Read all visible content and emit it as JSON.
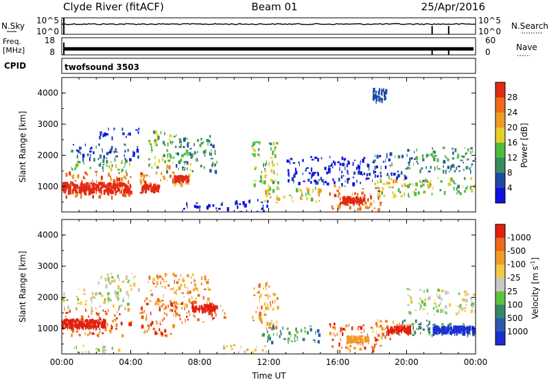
{
  "header": {
    "station": "Clyde River (fitACF)",
    "beam": "Beam 01",
    "date": "25/Apr/2016"
  },
  "strips": {
    "nsky_label": "N.Sky",
    "nsearch_label": "N.Search",
    "nsky_ticks": [
      "10^5",
      "10^0"
    ],
    "nsearch_ticks": [
      "10^5",
      "10^0"
    ],
    "freq_label": "Freq.",
    "freq_unit": "[MHz]",
    "freq_ticks": [
      "18",
      "8"
    ],
    "nave_label": "Nave",
    "nave_ticks": [
      "60",
      "0"
    ],
    "cpid_label": "CPID",
    "cpid_value": "twofsound 3503",
    "nsky_level": 0.62,
    "freq_level": 0.35
  },
  "chart_data": [
    {
      "type": "heatmap",
      "name": "power",
      "ylabel": "Slant Range [km]",
      "ylim": [
        180,
        4500
      ],
      "y_ticks": [
        "1000",
        "2000",
        "3000",
        "4000"
      ],
      "x_ticks": [
        "00:00",
        "04:00",
        "08:00",
        "12:00",
        "16:00",
        "20:00",
        "00:00"
      ],
      "colorbar_label": "Power [dB]",
      "colorbar_ticks": [
        "4",
        "8",
        "12",
        "16",
        "20",
        "24",
        "28"
      ],
      "colorbar_colors": [
        "#1010e0",
        "#2048a8",
        "#3a8a62",
        "#4cbc3c",
        "#e6cf2a",
        "#f09a26",
        "#f06a1a",
        "#e32a12"
      ],
      "regions": [
        {
          "t0": 0.0,
          "t1": 4.0,
          "r0": 700,
          "r1": 1500,
          "c": 6
        },
        {
          "t0": 0.5,
          "t1": 4.0,
          "r0": 1500,
          "r1": 1900,
          "c": 3
        },
        {
          "t0": 0.5,
          "t1": 4.5,
          "r0": 1900,
          "r1": 2400,
          "c": 1
        },
        {
          "t0": 2.0,
          "t1": 4.5,
          "r0": 2600,
          "r1": 2900,
          "c": 0
        },
        {
          "t0": 4.5,
          "t1": 6.0,
          "r0": 800,
          "r1": 1500,
          "c": 6
        },
        {
          "t0": 5.0,
          "t1": 6.5,
          "r0": 1500,
          "r1": 2800,
          "c": 3
        },
        {
          "t0": 6.0,
          "t1": 7.5,
          "r0": 1100,
          "r1": 1800,
          "c": 5
        },
        {
          "t0": 6.5,
          "t1": 9.0,
          "r0": 1500,
          "r1": 2700,
          "c": 2
        },
        {
          "t0": 7.0,
          "t1": 10.0,
          "r0": 300,
          "r1": 500,
          "c": 0
        },
        {
          "t0": 10.0,
          "t1": 12.0,
          "r0": 200,
          "r1": 600,
          "c": 0
        },
        {
          "t0": 11.0,
          "t1": 12.5,
          "r0": 1000,
          "r1": 2500,
          "c": 3
        },
        {
          "t0": 11.5,
          "t1": 15.0,
          "r0": 500,
          "r1": 1000,
          "c": 4
        },
        {
          "t0": 15.5,
          "t1": 18.5,
          "r0": 300,
          "r1": 1100,
          "c": 6
        },
        {
          "t0": 18.0,
          "t1": 21.5,
          "r0": 700,
          "r1": 1300,
          "c": 4
        },
        {
          "t0": 20.5,
          "t1": 24.0,
          "r0": 800,
          "r1": 1300,
          "c": 3
        },
        {
          "t0": 20.0,
          "t1": 24.0,
          "r0": 1500,
          "r1": 2300,
          "c": 2
        },
        {
          "t0": 18.0,
          "t1": 20.0,
          "r0": 1300,
          "r1": 2100,
          "c": 1
        },
        {
          "t0": 13.0,
          "t1": 18.0,
          "r0": 1100,
          "r1": 2000,
          "c": 0
        }
      ],
      "streaks": [
        {
          "t0": 0.0,
          "t1": 4.0,
          "r": 1000,
          "w": 300,
          "c": 7
        },
        {
          "t0": 4.6,
          "t1": 5.6,
          "r": 1000,
          "w": 200,
          "c": 7
        },
        {
          "t0": 6.4,
          "t1": 7.3,
          "r": 1300,
          "w": 150,
          "c": 7
        },
        {
          "t0": 16.2,
          "t1": 17.5,
          "r": 600,
          "w": 200,
          "c": 7
        },
        {
          "t0": 18.0,
          "t1": 18.8,
          "r": 4000,
          "w": 400,
          "c": 1
        }
      ]
    },
    {
      "type": "heatmap",
      "name": "velocity",
      "ylabel": "Slant Range [km]",
      "ylim": [
        180,
        4500
      ],
      "y_ticks": [
        "1000",
        "2000",
        "3000",
        "4000"
      ],
      "x_ticks": [
        "00:00",
        "04:00",
        "08:00",
        "12:00",
        "16:00",
        "20:00",
        "00:00"
      ],
      "xlabel": "Time UT",
      "colorbar_label": "Velocity [m s",
      "colorbar_label_sup": "-1",
      "colorbar_label_end": "]",
      "colorbar_ticks": [
        "1000",
        "500",
        "100",
        "25",
        "-25",
        "-100",
        "-500",
        "-1000"
      ],
      "colorbar_colors": [
        "#1b2fd2",
        "#2f58ae",
        "#36886a",
        "#5cc43c",
        "#c8c8c8",
        "#f2c84a",
        "#f29b28",
        "#ee6a1c",
        "#e22010"
      ],
      "regions": [
        {
          "t0": 0.0,
          "t1": 4.0,
          "r0": 800,
          "r1": 1700,
          "c": 7
        },
        {
          "t0": 0.0,
          "t1": 4.0,
          "r0": 1700,
          "r1": 2300,
          "c": 4
        },
        {
          "t0": 2.0,
          "t1": 4.5,
          "r0": 2300,
          "r1": 2800,
          "c": 4
        },
        {
          "t0": 4.5,
          "t1": 6.5,
          "r0": 800,
          "r1": 2000,
          "c": 7
        },
        {
          "t0": 5.0,
          "t1": 8.5,
          "r0": 1800,
          "r1": 2800,
          "c": 6
        },
        {
          "t0": 6.5,
          "t1": 9.5,
          "r0": 1200,
          "r1": 1900,
          "c": 7
        },
        {
          "t0": 9.0,
          "t1": 12.0,
          "r0": 200,
          "r1": 500,
          "c": 5
        },
        {
          "t0": 11.0,
          "t1": 12.5,
          "r0": 1000,
          "r1": 2500,
          "c": 6
        },
        {
          "t0": 11.5,
          "t1": 15.0,
          "r0": 600,
          "r1": 1100,
          "c": 2
        },
        {
          "t0": 15.5,
          "t1": 18.5,
          "r0": 300,
          "r1": 1200,
          "c": 7
        },
        {
          "t0": 18.0,
          "t1": 20.5,
          "r0": 700,
          "r1": 1300,
          "c": 6
        },
        {
          "t0": 19.5,
          "t1": 24.0,
          "r0": 800,
          "r1": 1300,
          "c": 2
        },
        {
          "t0": 20.0,
          "t1": 24.0,
          "r0": 1500,
          "r1": 2300,
          "c": 4
        },
        {
          "t0": 0.5,
          "t1": 3.5,
          "r0": 200,
          "r1": 500,
          "c": 4
        }
      ],
      "streaks": [
        {
          "t0": 0.0,
          "t1": 2.5,
          "r": 1200,
          "w": 250,
          "c": 8
        },
        {
          "t0": 7.5,
          "t1": 9.0,
          "r": 1700,
          "w": 200,
          "c": 8
        },
        {
          "t0": 18.8,
          "t1": 20.2,
          "r": 1000,
          "w": 200,
          "c": 8
        },
        {
          "t0": 21.5,
          "t1": 24.0,
          "r": 1000,
          "w": 200,
          "c": 0
        },
        {
          "t0": 16.5,
          "t1": 17.8,
          "r": 700,
          "w": 200,
          "c": 6
        }
      ]
    }
  ]
}
